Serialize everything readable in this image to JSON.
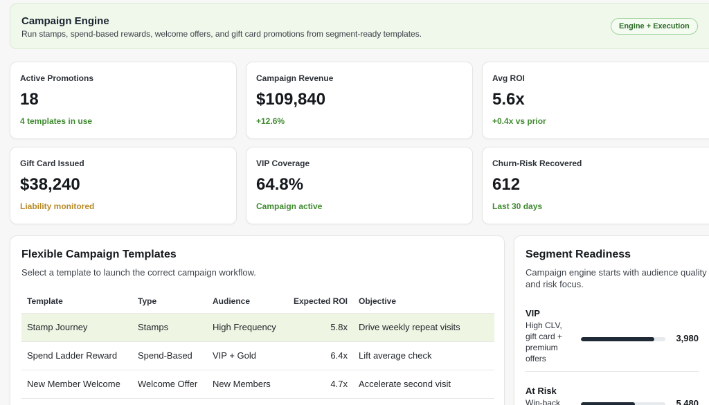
{
  "header": {
    "title": "Campaign Engine",
    "subtitle": "Run stamps, spend-based rewards, welcome offers, and gift card promotions from segment-ready templates.",
    "badge": "Engine + Execution"
  },
  "stats": [
    {
      "label": "Active Promotions",
      "value": "18",
      "note": "4 templates in use",
      "tone": "green"
    },
    {
      "label": "Campaign Revenue",
      "value": "$109,840",
      "note": "+12.6%",
      "tone": "green"
    },
    {
      "label": "Avg ROI",
      "value": "5.6x",
      "note": "+0.4x vs prior",
      "tone": "green"
    },
    {
      "label": "Gift Card Issued",
      "value": "$38,240",
      "note": "Liability monitored",
      "tone": "amber"
    },
    {
      "label": "VIP Coverage",
      "value": "64.8%",
      "note": "Campaign active",
      "tone": "green"
    },
    {
      "label": "Churn-Risk Recovered",
      "value": "612",
      "note": "Last 30 days",
      "tone": "green"
    }
  ],
  "templates": {
    "title": "Flexible Campaign Templates",
    "subtitle": "Select a template to launch the correct campaign workflow.",
    "columns": {
      "template": "Template",
      "type": "Type",
      "audience": "Audience",
      "roi": "Expected ROI",
      "objective": "Objective"
    },
    "rows": [
      {
        "template": "Stamp Journey",
        "type": "Stamps",
        "audience": "High Frequency",
        "roi": "5.8x",
        "objective": "Drive weekly repeat visits"
      },
      {
        "template": "Spend Ladder Reward",
        "type": "Spend-Based",
        "audience": "VIP + Gold",
        "roi": "6.4x",
        "objective": "Lift average check"
      },
      {
        "template": "New Member Welcome",
        "type": "Welcome Offer",
        "audience": "New Members",
        "roi": "4.7x",
        "objective": "Accelerate second visit"
      }
    ]
  },
  "segments": {
    "title": "Segment Readiness",
    "subtitle": "Campaign engine starts with audience quality and risk focus.",
    "items": [
      {
        "name": "VIP",
        "desc": "High CLV, gift card + premium offers",
        "count": "3,980",
        "fill": 0.87
      },
      {
        "name": "At Risk",
        "desc": "Win-back",
        "count": "5,480",
        "fill": 0.64
      }
    ]
  },
  "colors": {
    "accent_green": "#3f8a2f",
    "accent_amber": "#b88a28",
    "selected_row": "#eef5e3",
    "bar_fill": "#1f2a36"
  }
}
